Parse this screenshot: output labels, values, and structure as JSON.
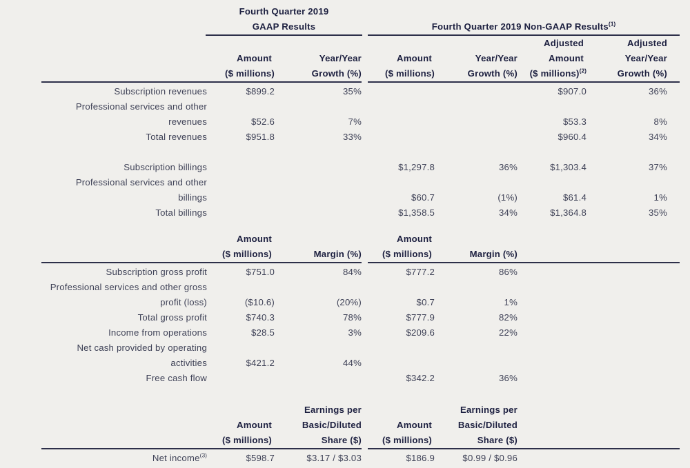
{
  "page": {
    "background": "#f0efec",
    "text_color": "#3f4257",
    "heading_color": "#1d2040",
    "rule_color": "#2d2f49"
  },
  "group_headers": {
    "gaap_line1": "Fourth Quarter 2019",
    "gaap_line2": "GAAP Results",
    "nongaap_title": "Fourth Quarter 2019 Non-GAAP Results",
    "nongaap_sup": "(1)"
  },
  "main_header": {
    "l1": {
      "c6": "Adjusted",
      "c7": "Adjusted"
    },
    "l2": {
      "c2": "Amount",
      "c3": "Year/Year",
      "c4": "Amount",
      "c5": "Year/Year",
      "c6": "Amount",
      "c7": "Year/Year"
    },
    "l3": {
      "c2": "($ millions)",
      "c3": "Growth (%)",
      "c4": "($ millions)",
      "c5": "Growth (%)",
      "c6": "($ millions)",
      "c6_sup": "(2)",
      "c7": "Growth (%)"
    }
  },
  "revenues_billings": {
    "rows": [
      [
        "Subscription revenues",
        "$899.2",
        "35%",
        "",
        "",
        "$907.0",
        "36%"
      ],
      [
        "Professional services and other",
        "",
        "",
        "",
        "",
        "",
        ""
      ],
      [
        "revenues",
        "$52.6",
        "7%",
        "",
        "",
        "$53.3",
        "8%"
      ],
      [
        "Total revenues",
        "$951.8",
        "33%",
        "",
        "",
        "$960.4",
        "34%"
      ],
      [
        "",
        "",
        "",
        "",
        "",
        "",
        ""
      ],
      [
        "Subscription billings",
        "",
        "",
        "$1,297.8",
        "36%",
        "$1,303.4",
        "37%"
      ],
      [
        "Professional services and other",
        "",
        "",
        "",
        "",
        "",
        ""
      ],
      [
        "billings",
        "",
        "",
        "$60.7",
        "(1%)",
        "$61.4",
        "1%"
      ],
      [
        "Total billings",
        "",
        "",
        "$1,358.5",
        "34%",
        "$1,364.8",
        "35%"
      ]
    ]
  },
  "profitability": {
    "header_rows": [
      [
        "",
        "Amount",
        "",
        "Amount",
        "",
        "",
        ""
      ],
      [
        "",
        "($ millions)",
        "Margin (%)",
        "($ millions)",
        "Margin (%)",
        "",
        ""
      ]
    ],
    "rows": [
      [
        "Subscription gross profit",
        "$751.0",
        "84%",
        "$777.2",
        "86%",
        "",
        ""
      ],
      [
        "Professional services and other gross",
        "",
        "",
        "",
        "",
        "",
        ""
      ],
      [
        "profit (loss)",
        "($10.6)",
        "(20%)",
        "$0.7",
        "1%",
        "",
        ""
      ],
      [
        "Total gross profit",
        "$740.3",
        "78%",
        "$777.9",
        "82%",
        "",
        ""
      ],
      [
        "Income from operations",
        "$28.5",
        "3%",
        "$209.6",
        "22%",
        "",
        ""
      ],
      [
        "Net cash provided by operating",
        "",
        "",
        "",
        "",
        "",
        ""
      ],
      [
        "activities",
        "$421.2",
        "44%",
        "",
        "",
        "",
        ""
      ],
      [
        "Free cash flow",
        "",
        "",
        "$342.2",
        "36%",
        "",
        ""
      ]
    ]
  },
  "eps": {
    "header_rows": [
      [
        "",
        "",
        "Earnings per",
        "",
        "Earnings per",
        "",
        ""
      ],
      [
        "",
        "Amount",
        "Basic/Diluted",
        "Amount",
        "Basic/Diluted",
        "",
        ""
      ],
      [
        "",
        "($ millions)",
        "Share ($)",
        "($ millions)",
        "Share ($)",
        "",
        ""
      ]
    ],
    "net_income_label": "Net income",
    "net_income_sup": "(3)",
    "values": [
      "$598.7",
      "$3.17 / $3.03",
      "$186.9",
      "$0.99 / $0.96"
    ]
  }
}
